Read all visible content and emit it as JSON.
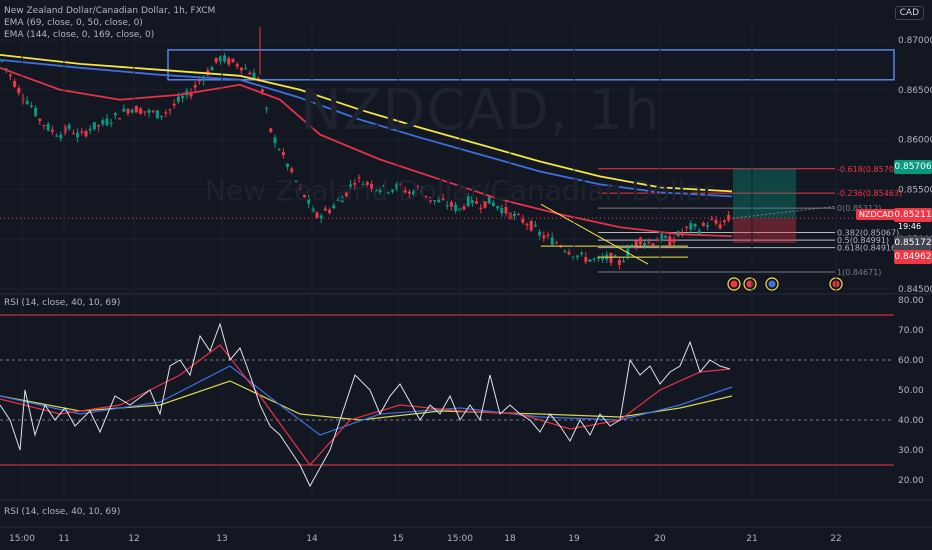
{
  "header": {
    "symbol_line": "New Zealand Dollar/Canadian Dollar, 1h, FXCM",
    "ema1": "EMA (69, close, 0, 50, close, 0)",
    "ema2": "EMA (144, close, 0, 169, close, 0)",
    "currency": "CAD"
  },
  "watermark": {
    "ticker": "NZDCAD, 1h",
    "name": "New Zealand Dollar/Canadian Dollar"
  },
  "price_labels": {
    "fib_high": "0.85706",
    "current": "0.85211",
    "ticker_tag": "NZDCAD",
    "countdown": "19:46",
    "bid": "0.85172",
    "low": "0.84962"
  },
  "rsi_panel": {
    "label_top": "RSI (14, close, 40, 10, 69)",
    "label_bottom": "RSI (14, close, 40, 10, 69)"
  },
  "colors": {
    "bg": "#131722",
    "bull": "#089981",
    "bear": "#f23645",
    "ema_yellow": "#f6e543",
    "ema_blue": "#3d6fe0",
    "ema_red": "#e53247",
    "rsi_line": "#e0e3eb",
    "rsi_ma_red": "#e53247",
    "rsi_ma_blue": "#3d6fe0",
    "rsi_ma_yellow": "#d6d44a"
  },
  "chart_data": [
    {
      "type": "candlestick",
      "title": "New Zealand Dollar/Canadian Dollar, 1h, FXCM",
      "ylim": [
        0.8445,
        0.8718
      ],
      "y_ticks": [
        "0.87000",
        "0.86500",
        "0.86000",
        "0.85500",
        "0.85000",
        "0.84500"
      ],
      "x_ticks": [
        "15:00",
        "11",
        "12",
        "13",
        "14",
        "15",
        "15:00",
        "18",
        "19",
        "20",
        "21",
        "22"
      ],
      "close_path": [
        [
          0,
          0.8682
        ],
        [
          10,
          0.8665
        ],
        [
          20,
          0.8648
        ],
        [
          30,
          0.8636
        ],
        [
          40,
          0.862
        ],
        [
          50,
          0.861
        ],
        [
          60,
          0.8605
        ],
        [
          70,
          0.8612
        ],
        [
          80,
          0.8602
        ],
        [
          90,
          0.8612
        ],
        [
          100,
          0.8614
        ],
        [
          110,
          0.862
        ],
        [
          120,
          0.8625
        ],
        [
          130,
          0.8632
        ],
        [
          140,
          0.863
        ],
        [
          150,
          0.8627
        ],
        [
          160,
          0.8625
        ],
        [
          170,
          0.863
        ],
        [
          180,
          0.864
        ],
        [
          190,
          0.8646
        ],
        [
          200,
          0.866
        ],
        [
          210,
          0.867
        ],
        [
          220,
          0.8682
        ],
        [
          230,
          0.8678
        ],
        [
          240,
          0.8675
        ],
        [
          250,
          0.8668
        ],
        [
          260,
          0.866
        ],
        [
          270,
          0.861
        ],
        [
          280,
          0.859
        ],
        [
          290,
          0.857
        ],
        [
          300,
          0.855
        ],
        [
          310,
          0.8535
        ],
        [
          315,
          0.8522
        ],
        [
          330,
          0.853
        ],
        [
          345,
          0.8545
        ],
        [
          355,
          0.856
        ],
        [
          370,
          0.8555
        ],
        [
          385,
          0.855
        ],
        [
          400,
          0.8553
        ],
        [
          410,
          0.8546
        ],
        [
          420,
          0.8552
        ],
        [
          430,
          0.854
        ],
        [
          445,
          0.8536
        ],
        [
          460,
          0.853
        ],
        [
          470,
          0.854
        ],
        [
          480,
          0.8535
        ],
        [
          490,
          0.8538
        ],
        [
          500,
          0.8532
        ],
        [
          510,
          0.8525
        ],
        [
          520,
          0.852
        ],
        [
          530,
          0.8515
        ],
        [
          540,
          0.8505
        ],
        [
          550,
          0.85
        ],
        [
          560,
          0.8495
        ],
        [
          570,
          0.8488
        ],
        [
          580,
          0.8482
        ],
        [
          590,
          0.848
        ],
        [
          600,
          0.8478
        ],
        [
          610,
          0.8482
        ],
        [
          620,
          0.8476
        ],
        [
          630,
          0.849
        ],
        [
          640,
          0.85
        ],
        [
          650,
          0.8496
        ],
        [
          660,
          0.8502
        ],
        [
          670,
          0.8498
        ],
        [
          680,
          0.8505
        ],
        [
          690,
          0.8512
        ],
        [
          700,
          0.851
        ],
        [
          710,
          0.8518
        ],
        [
          720,
          0.8514
        ],
        [
          730,
          0.8521
        ]
      ],
      "ema_yellow": [
        [
          0,
          0.8685
        ],
        [
          80,
          0.8676
        ],
        [
          160,
          0.867
        ],
        [
          240,
          0.8664
        ],
        [
          300,
          0.865
        ],
        [
          360,
          0.863
        ],
        [
          420,
          0.8612
        ],
        [
          480,
          0.8595
        ],
        [
          540,
          0.8578
        ],
        [
          600,
          0.8563
        ],
        [
          660,
          0.8552
        ],
        [
          732,
          0.8548
        ]
      ],
      "ema_blue": [
        [
          0,
          0.868
        ],
        [
          80,
          0.8672
        ],
        [
          160,
          0.8665
        ],
        [
          240,
          0.866
        ],
        [
          300,
          0.8642
        ],
        [
          360,
          0.862
        ],
        [
          420,
          0.8602
        ],
        [
          480,
          0.8585
        ],
        [
          540,
          0.8568
        ],
        [
          600,
          0.8555
        ],
        [
          660,
          0.8547
        ],
        [
          732,
          0.8543
        ]
      ],
      "ema_red": [
        [
          0,
          0.8672
        ],
        [
          60,
          0.865
        ],
        [
          120,
          0.864
        ],
        [
          180,
          0.8645
        ],
        [
          240,
          0.8655
        ],
        [
          280,
          0.864
        ],
        [
          320,
          0.8605
        ],
        [
          380,
          0.858
        ],
        [
          440,
          0.856
        ],
        [
          500,
          0.854
        ],
        [
          560,
          0.8525
        ],
        [
          620,
          0.8512
        ],
        [
          680,
          0.8505
        ],
        [
          732,
          0.8503
        ]
      ],
      "fib_levels": [
        {
          "label": "-0.618(0.85707)",
          "value": 0.85707,
          "color": "#f23645"
        },
        {
          "label": "-0.236(0.85463)",
          "value": 0.85463,
          "color": "#f23645"
        },
        {
          "label": "0(0.85312)",
          "value": 0.85312,
          "color": "#787b86"
        },
        {
          "label": "0.382(0.85067)",
          "value": 0.85067,
          "color": "#b2b5be"
        },
        {
          "label": "0.5(0.84991)",
          "value": 0.84991,
          "color": "#b2b5be"
        },
        {
          "label": "0.618(0.84916)",
          "value": 0.84916,
          "color": "#b2b5be"
        },
        {
          "label": "1(0.84671)",
          "value": 0.84671,
          "color": "#787b86"
        }
      ],
      "resistance_box": [
        0.869,
        0.866
      ]
    },
    {
      "type": "line",
      "title": "RSI (14, close, 40, 10, 69)",
      "ylim": [
        15,
        80
      ],
      "y_ticks": [
        "80.00",
        "70.00",
        "60.00",
        "50.00",
        "40.00",
        "30.00",
        "20.00"
      ],
      "bands": [
        75,
        60,
        40,
        25
      ],
      "rsi": [
        [
          0,
          45
        ],
        [
          10,
          40
        ],
        [
          20,
          30
        ],
        [
          25,
          50
        ],
        [
          35,
          35
        ],
        [
          45,
          45
        ],
        [
          55,
          40
        ],
        [
          65,
          44
        ],
        [
          75,
          38
        ],
        [
          90,
          43
        ],
        [
          100,
          36
        ],
        [
          115,
          48
        ],
        [
          130,
          45
        ],
        [
          150,
          50
        ],
        [
          160,
          42
        ],
        [
          170,
          58
        ],
        [
          180,
          60
        ],
        [
          190,
          55
        ],
        [
          200,
          68
        ],
        [
          210,
          63
        ],
        [
          220,
          72
        ],
        [
          230,
          60
        ],
        [
          240,
          64
        ],
        [
          250,
          55
        ],
        [
          260,
          45
        ],
        [
          270,
          38
        ],
        [
          280,
          35
        ],
        [
          290,
          30
        ],
        [
          300,
          25
        ],
        [
          310,
          18
        ],
        [
          320,
          24
        ],
        [
          330,
          30
        ],
        [
          345,
          45
        ],
        [
          355,
          55
        ],
        [
          370,
          50
        ],
        [
          380,
          42
        ],
        [
          390,
          48
        ],
        [
          400,
          52
        ],
        [
          410,
          46
        ],
        [
          420,
          40
        ],
        [
          430,
          45
        ],
        [
          440,
          42
        ],
        [
          450,
          48
        ],
        [
          460,
          40
        ],
        [
          470,
          45
        ],
        [
          480,
          40
        ],
        [
          490,
          55
        ],
        [
          500,
          42
        ],
        [
          510,
          45
        ],
        [
          520,
          42
        ],
        [
          530,
          40
        ],
        [
          540,
          36
        ],
        [
          550,
          42
        ],
        [
          560,
          38
        ],
        [
          570,
          33
        ],
        [
          580,
          40
        ],
        [
          590,
          35
        ],
        [
          600,
          42
        ],
        [
          610,
          38
        ],
        [
          620,
          40
        ],
        [
          630,
          60
        ],
        [
          640,
          55
        ],
        [
          650,
          58
        ],
        [
          660,
          52
        ],
        [
          670,
          56
        ],
        [
          680,
          58
        ],
        [
          690,
          66
        ],
        [
          700,
          56
        ],
        [
          710,
          60
        ],
        [
          720,
          58
        ],
        [
          730,
          57
        ]
      ],
      "rsi_ma_red": [
        [
          0,
          47
        ],
        [
          60,
          42
        ],
        [
          120,
          45
        ],
        [
          180,
          55
        ],
        [
          220,
          65
        ],
        [
          260,
          48
        ],
        [
          310,
          25
        ],
        [
          350,
          40
        ],
        [
          400,
          45
        ],
        [
          460,
          43
        ],
        [
          520,
          42
        ],
        [
          570,
          37
        ],
        [
          620,
          40
        ],
        [
          660,
          50
        ],
        [
          700,
          56
        ],
        [
          730,
          57
        ]
      ],
      "rsi_ma_blue": [
        [
          0,
          48
        ],
        [
          80,
          42
        ],
        [
          160,
          46
        ],
        [
          230,
          58
        ],
        [
          280,
          45
        ],
        [
          320,
          35
        ],
        [
          380,
          42
        ],
        [
          460,
          44
        ],
        [
          540,
          41
        ],
        [
          620,
          40
        ],
        [
          680,
          45
        ],
        [
          732,
          51
        ]
      ],
      "rsi_ma_yellow": [
        [
          0,
          48
        ],
        [
          80,
          43
        ],
        [
          160,
          45
        ],
        [
          230,
          53
        ],
        [
          300,
          42
        ],
        [
          360,
          40
        ],
        [
          440,
          43
        ],
        [
          540,
          42
        ],
        [
          620,
          41
        ],
        [
          680,
          44
        ],
        [
          732,
          48
        ]
      ]
    }
  ]
}
